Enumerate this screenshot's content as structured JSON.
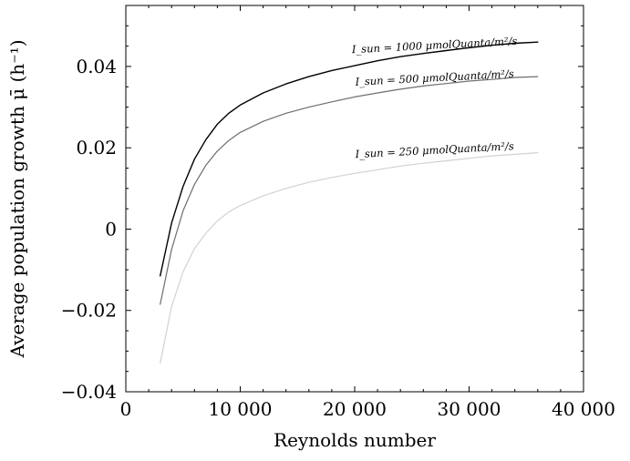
{
  "chart_data": {
    "type": "line",
    "xlabel": "Reynolds number",
    "ylabel": "Average population growth μ̄ (h⁻¹)",
    "xlim": [
      0,
      40000
    ],
    "ylim": [
      -0.04,
      0.055
    ],
    "x_ticks": [
      0,
      10000,
      20000,
      30000,
      40000
    ],
    "x_tick_labels": [
      "0",
      "10 000",
      "20 000",
      "30 000",
      "40 000"
    ],
    "y_ticks": [
      -0.04,
      -0.02,
      0,
      0.02,
      0.04
    ],
    "y_tick_labels": [
      "−0.04",
      "−0.02",
      "0",
      "0.02",
      "0.04"
    ],
    "grid": false,
    "legend": "inline labels on curves",
    "series": [
      {
        "name": "I_sun = 1000 μmolQuanta/m²/s",
        "color": "#000000",
        "x": [
          3000,
          4000,
          5000,
          6000,
          7000,
          8000,
          9000,
          10000,
          12000,
          14000,
          16000,
          18000,
          20000,
          22000,
          24000,
          26000,
          28000,
          30000,
          32000,
          34000,
          36000
        ],
        "y": [
          -0.0115,
          0.0015,
          0.0105,
          0.0172,
          0.022,
          0.0258,
          0.0285,
          0.0305,
          0.0335,
          0.0357,
          0.0375,
          0.039,
          0.0402,
          0.0414,
          0.0424,
          0.0432,
          0.0439,
          0.0446,
          0.0452,
          0.0457,
          0.046
        ]
      },
      {
        "name": "I_sun = 500 μmolQuanta/m²/s",
        "color": "#6e6e6e",
        "x": [
          3000,
          4000,
          5000,
          6000,
          7000,
          8000,
          9000,
          10000,
          12000,
          14000,
          16000,
          18000,
          20000,
          22000,
          24000,
          26000,
          28000,
          30000,
          32000,
          34000,
          36000
        ],
        "y": [
          -0.0185,
          -0.005,
          0.0045,
          0.011,
          0.0157,
          0.0192,
          0.0218,
          0.0238,
          0.0265,
          0.0285,
          0.03,
          0.0313,
          0.0325,
          0.0335,
          0.0344,
          0.0352,
          0.0358,
          0.0364,
          0.0368,
          0.0373,
          0.0375
        ]
      },
      {
        "name": "I_sun = 250 μmolQuanta/m²/s",
        "color": "#d2d2d2",
        "x": [
          3000,
          4000,
          5000,
          6000,
          7000,
          8000,
          9000,
          10000,
          12000,
          14000,
          16000,
          18000,
          20000,
          22000,
          24000,
          26000,
          28000,
          30000,
          32000,
          34000,
          36000
        ],
        "y": [
          -0.033,
          -0.019,
          -0.0105,
          -0.0048,
          -0.001,
          0.002,
          0.0042,
          0.0058,
          0.0082,
          0.01,
          0.0115,
          0.0127,
          0.0137,
          0.0146,
          0.0155,
          0.0162,
          0.0168,
          0.0174,
          0.018,
          0.0184,
          0.0188
        ]
      }
    ],
    "annotations": [
      {
        "series": 0,
        "text": "I_sun = 1000 μmolQuanta/m²/s",
        "at_x": 27000,
        "at_y": 0.043
      },
      {
        "series": 1,
        "text": "I_sun = 500 μmolQuanta/m²/s",
        "at_x": 27000,
        "at_y": 0.035
      },
      {
        "series": 2,
        "text": "I_sun = 250 μmolQuanta/m²/s",
        "at_x": 27000,
        "at_y": 0.0172
      }
    ]
  }
}
